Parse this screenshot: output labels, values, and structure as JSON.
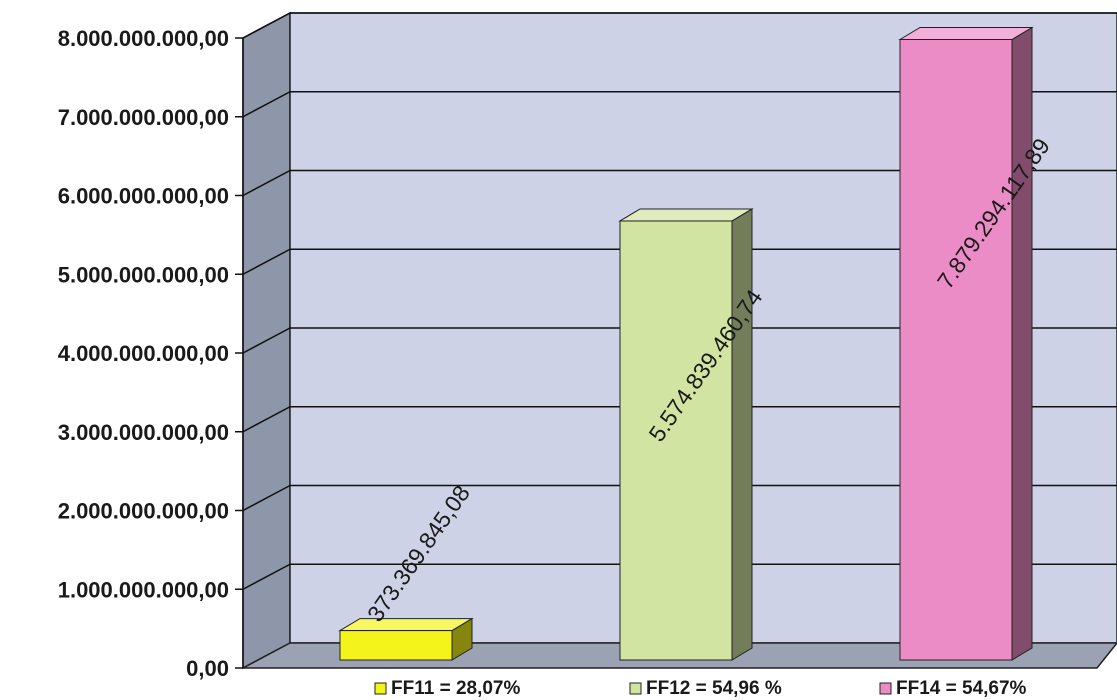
{
  "chart_data": {
    "type": "bar",
    "categories": [
      "FF11",
      "FF12",
      "FF14"
    ],
    "values": [
      373369845.08,
      5574839460.74,
      7879294117.89
    ],
    "data_labels": [
      "373.369.845,08",
      "5.574.839.460,74",
      "7.879.294.117,89"
    ],
    "ylim": [
      0,
      8000000000
    ],
    "y_ticks": [
      0,
      1000000000,
      2000000000,
      3000000000,
      4000000000,
      5000000000,
      6000000000,
      7000000000,
      8000000000
    ],
    "y_tick_labels": [
      "0,00",
      "1.000.000.000,00",
      "2.000.000.000,00",
      "3.000.000.000,00",
      "4.000.000.000,00",
      "5.000.000.000,00",
      "6.000.000.000,00",
      "7.000.000.000,00",
      "8.000.000.000,00"
    ],
    "legend": [
      {
        "label": "FF11 = 28,07%",
        "color": "#f4f41a"
      },
      {
        "label": "FF12 = 54,96 %",
        "color": "#d2e4a2"
      },
      {
        "label": "FF14 = 54,67%",
        "color": "#ec8cc6"
      }
    ],
    "legend_position": "bottom",
    "grid": true,
    "style": "3d",
    "colors": {
      "plot_wall": "#cdd2e6",
      "side_wall": "#8e96aa",
      "floor": "#9aa2b4",
      "bars": [
        "#f4f41a",
        "#d2e4a2",
        "#ec8cc6"
      ]
    }
  }
}
